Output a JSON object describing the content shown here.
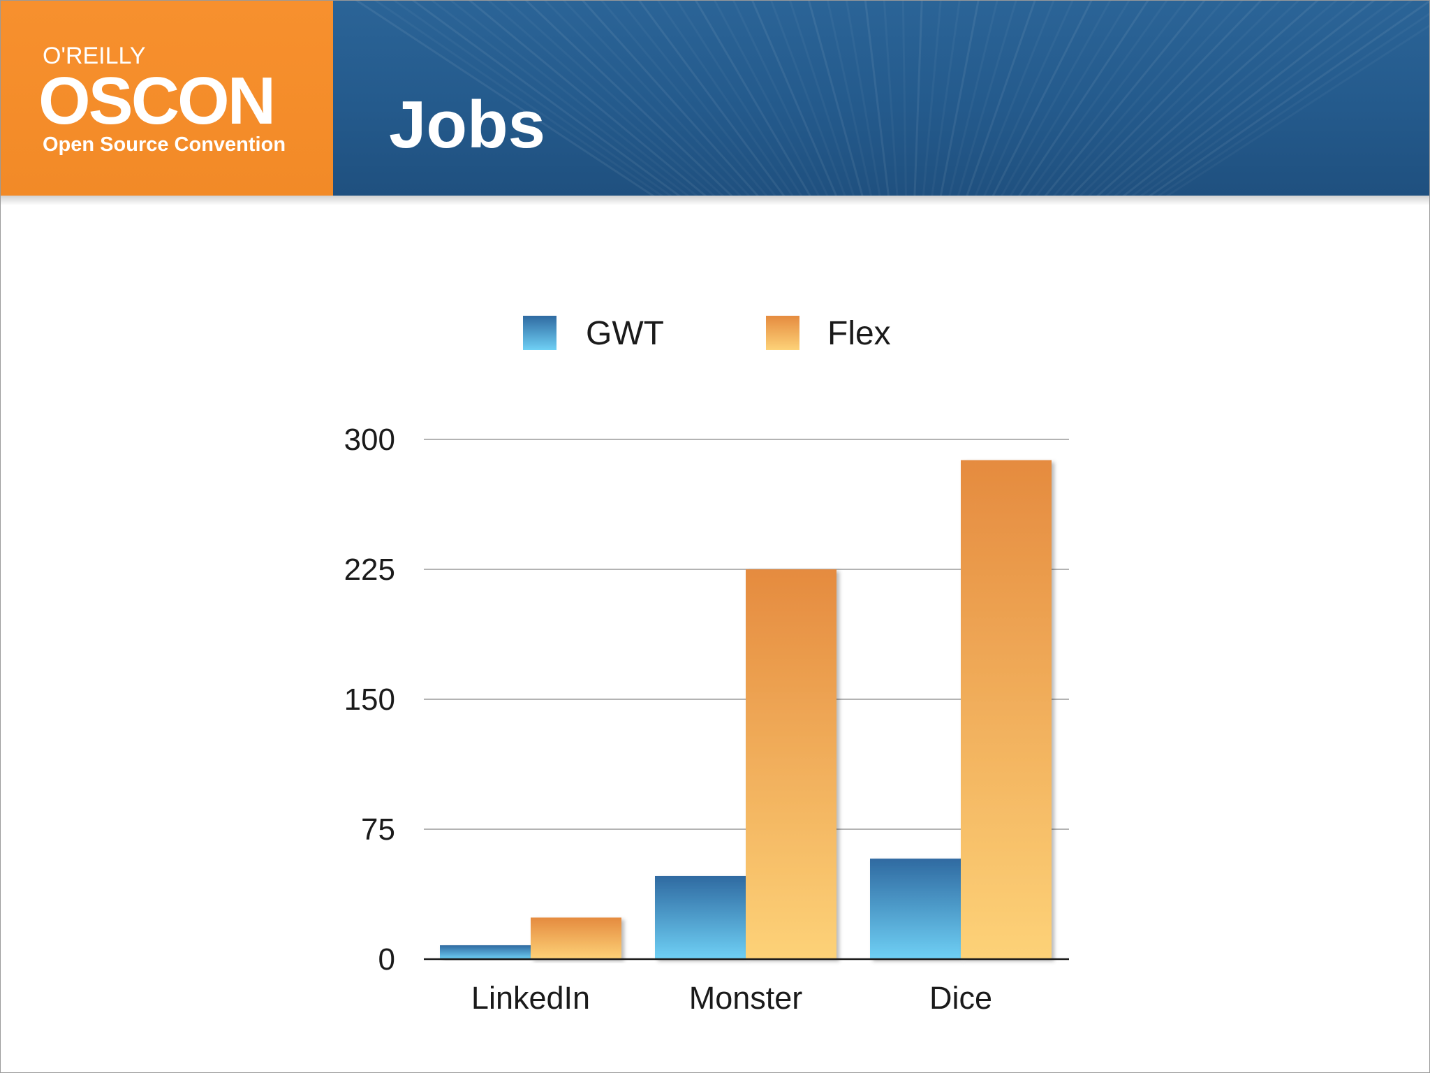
{
  "header": {
    "logo_brand": "O'REILLY",
    "logo_name": "OSCON",
    "logo_tagline": "Open Source Convention",
    "title": "Jobs"
  },
  "colors": {
    "header_blue": "#245a8c",
    "logo_orange": "#f28a27",
    "gwt_top": "#2f6aa1",
    "gwt_bottom": "#6fd0f5",
    "flex_top": "#e58b3f",
    "flex_bottom": "#fdd278"
  },
  "chart_data": {
    "type": "bar",
    "categories": [
      "LinkedIn",
      "Monster",
      "Dice"
    ],
    "series": [
      {
        "name": "GWT",
        "values": [
          8,
          48,
          58
        ]
      },
      {
        "name": "Flex",
        "values": [
          24,
          225,
          288
        ]
      }
    ],
    "yticks": [
      "0",
      "75",
      "150",
      "225",
      "300"
    ],
    "ylim": [
      0,
      300
    ],
    "grid": true,
    "legend_position": "top-center"
  }
}
